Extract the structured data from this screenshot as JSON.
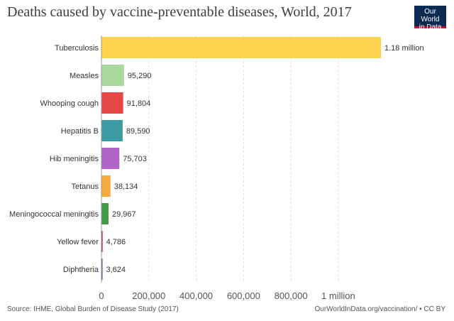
{
  "title": "Deaths caused by vaccine-preventable diseases, World, 2017",
  "logo": {
    "line1": "Our World",
    "line2": "in Data"
  },
  "source": "Source: IHME, Global Burden of Disease Study (2017)",
  "credit": "OurWorldInData.org/vaccination/ • CC BY",
  "chart_data": {
    "type": "bar",
    "orientation": "horizontal",
    "title": "Deaths caused by vaccine-preventable diseases, World, 2017",
    "xlabel": "",
    "ylabel": "",
    "xlim": [
      0,
      1180000
    ],
    "grid": true,
    "categories": [
      "Tuberculosis",
      "Measles",
      "Whooping cough",
      "Hepatitis B",
      "Hib meningitis",
      "Tetanus",
      "Meningococcal meningitis",
      "Yellow fever",
      "Diphtheria"
    ],
    "values": [
      1180000,
      95290,
      91804,
      89590,
      75703,
      38134,
      29967,
      4786,
      3624
    ],
    "value_labels": [
      "1.18 million",
      "95,290",
      "91,804",
      "89,590",
      "75,703",
      "38,134",
      "29,967",
      "4,786",
      "3,624"
    ],
    "colors": [
      "#fcd34d",
      "#a8d89b",
      "#e64848",
      "#3e9ba3",
      "#b064c8",
      "#f5a93e",
      "#3f9c44",
      "#c4161c",
      "#2f5a9b"
    ],
    "ticks": [
      0,
      200000,
      400000,
      600000,
      800000,
      1000000
    ],
    "tick_labels": [
      "0",
      "200,000",
      "400,000",
      "600,000",
      "800,000",
      "1 million"
    ]
  }
}
